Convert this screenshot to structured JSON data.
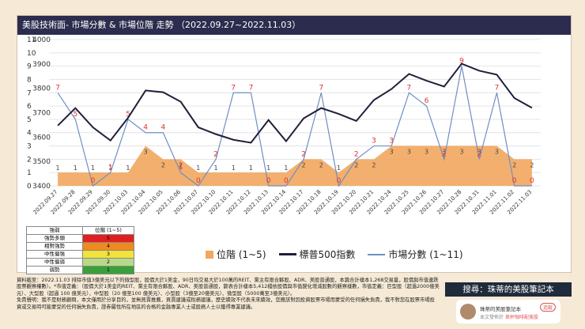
{
  "title": "美股技術面- 市場分數 & 市場位階 走勢 （2022.09.27~2022.11.03）",
  "colors": {
    "area": "#f2a65e",
    "sp500": "#1f1f3a",
    "score": "#6f8fc4",
    "area_label": "#444",
    "score_label": "#e03030",
    "title_bg": "#2c2c4e"
  },
  "chart_data": {
    "type": "line",
    "categories": [
      "2022.09.27",
      "2022.09.28",
      "2022.09.29",
      "2022.09.30",
      "2022.10.03",
      "2022.10.04",
      "2022.10.05",
      "2022.10.06",
      "2022.10.07",
      "2022.10.10",
      "2022.10.11",
      "2022.10.12",
      "2022.10.13",
      "2022.10.14",
      "2022.10.17",
      "2022.10.18",
      "2022.10.19",
      "2022.10.20",
      "2022.10.21",
      "2022.10.24",
      "2022.10.25",
      "2022.10.26",
      "2022.10.27",
      "2022.10.28",
      "2022.10.31",
      "2022.11.01",
      "2022.11.02",
      "2022.11.03"
    ],
    "series": [
      {
        "name": "位階 (1~5)",
        "kind": "area",
        "axis": "left",
        "values": [
          1,
          1,
          1,
          1,
          1,
          3,
          2,
          2,
          1,
          1,
          1,
          1,
          1,
          1,
          2,
          2,
          1,
          2,
          2,
          3,
          3,
          3,
          3,
          3,
          3,
          3,
          2,
          2
        ]
      },
      {
        "name": "標普500指數",
        "kind": "line",
        "axis": "right",
        "values": [
          3647,
          3719,
          3640,
          3586,
          3679,
          3791,
          3784,
          3745,
          3640,
          3612,
          3589,
          3577,
          3670,
          3583,
          3677,
          3719,
          3695,
          3666,
          3752,
          3797,
          3859,
          3831,
          3807,
          3901,
          3872,
          3856,
          3760,
          3720
        ]
      },
      {
        "name": "市場分數 (1~11)",
        "kind": "line",
        "axis": "left",
        "values": [
          7,
          5,
          0,
          1,
          5,
          4,
          4,
          1,
          0,
          2,
          7,
          7,
          0,
          0,
          2,
          7,
          0,
          2,
          3,
          3,
          7,
          6,
          2,
          9,
          2,
          7,
          0,
          0
        ]
      }
    ],
    "left_axis": {
      "min": 0,
      "max": 11,
      "ticks": [
        0,
        1,
        2,
        3,
        4,
        5,
        6,
        7,
        8,
        9,
        10,
        11
      ]
    },
    "right_axis": {
      "min": 3400,
      "max": 4000,
      "ticks": [
        3400,
        3500,
        3600,
        3700,
        3800,
        3900,
        4000
      ]
    },
    "grid": true,
    "legend_position": "bottom"
  },
  "level_table": {
    "headers": [
      "強弱",
      "位階 (1~5)"
    ],
    "rows": [
      {
        "label": "強勢多頭",
        "value": "5",
        "color": "#e02020"
      },
      {
        "label": "相對強勢",
        "value": "4",
        "color": "#f08a1e"
      },
      {
        "label": "中性偏強",
        "value": "3",
        "color": "#f2e23a"
      },
      {
        "label": "中性偏弱",
        "value": "2",
        "color": "#b9d98a"
      },
      {
        "label": "弱勢",
        "value": "1",
        "color": "#3aa03a"
      }
    ]
  },
  "legend": {
    "area": "位階 (1~5)",
    "sp500": "標普500指數",
    "score": "市場分數 (1~11)"
  },
  "notes": {
    "source": "資料截至：2022.11.03 排除市值3億美元以下的微型股，股價大於1美金，90日均交易大於100萬的REIT、黨主有限合夥股、ADR、美股普通股，本篇合計樣本1,268交易量，股價與市值連跌股票觀察權數）。*市值定義：（股價大於1美金的REIT、黨主有限合夥股、ADR、美股普通股，篩表合計樣本5,412檔依股價與市值變化增減股數的觀察樣數，市值定義：巨型股（超過2000億美元）、大型股（超過 100 億美元）、中型股（20 億至100 億美元）、小型股（3億至20億美元）、微型股（5000萬至3億美元）。",
    "disclaimer": "免責聲明：我不是財務顧問，本文僅用於分享目的，並無買賣推薦，買賣建議或稅務建議，歷史績效不代表未來績效，您應該對因投資股票市場而蒙受的任何損失負責，我不對您在股票市場投資或交易時可能蒙受的任何損失負責，證券屬性所在地區的合格的金融專業人士或股務人士以獲得專業建議。"
  },
  "search_banner": "搜尋：珠蒂的美股筆記本",
  "author_card": {
    "name": "珠蒂的美股筆記本",
    "follow": "追蹤",
    "sub_prefix": "本文發佈於",
    "sub_link": "來杯咖啡配美股"
  }
}
